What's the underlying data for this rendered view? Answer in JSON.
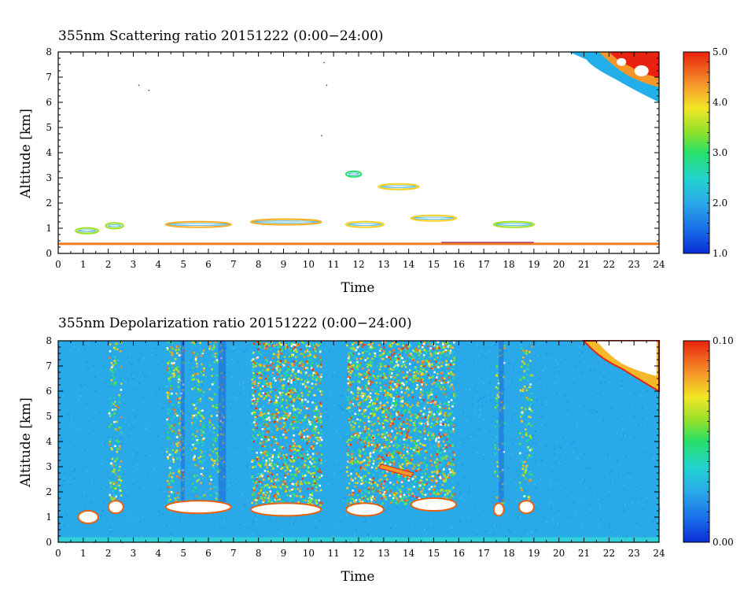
{
  "chart_data": [
    {
      "type": "heatmap",
      "title": "355nm Scattering ratio  20151222 (0:00−24:00)",
      "xlabel": "Time",
      "ylabel": "Altitude [km]",
      "xlim": [
        0,
        24
      ],
      "ylim": [
        0,
        8
      ],
      "x_ticks": [
        "0",
        "1",
        "2",
        "3",
        "4",
        "5",
        "6",
        "7",
        "8",
        "9",
        "10",
        "11",
        "12",
        "13",
        "14",
        "15",
        "16",
        "17",
        "18",
        "19",
        "20",
        "21",
        "22",
        "23",
        "24"
      ],
      "y_ticks": [
        "0",
        "1",
        "2",
        "3",
        "4",
        "5",
        "6",
        "7",
        "8"
      ],
      "colorbar": {
        "min": 1.0,
        "max": 5.0,
        "labels": [
          "1.0",
          "2.0",
          "3.0",
          "4.0",
          "5.0"
        ]
      },
      "background": "white (below scale)",
      "features": [
        {
          "kind": "surface-layer",
          "t0": 0.0,
          "t1": 24.0,
          "alt": 0.38,
          "value": 4.5
        },
        {
          "kind": "cloud",
          "t0": 0.7,
          "t1": 1.6,
          "alt": 0.9,
          "value": 3.5
        },
        {
          "kind": "cloud",
          "t0": 1.9,
          "t1": 2.6,
          "alt": 1.1,
          "value": 3.5
        },
        {
          "kind": "cloud",
          "t0": 4.3,
          "t1": 6.9,
          "alt": 1.15,
          "value": 4.2
        },
        {
          "kind": "cloud",
          "t0": 7.7,
          "t1": 10.5,
          "alt": 1.25,
          "value": 4.2
        },
        {
          "kind": "cloud",
          "t0": 11.5,
          "t1": 13.0,
          "alt": 1.15,
          "value": 4.0
        },
        {
          "kind": "cloud",
          "t0": 14.1,
          "t1": 15.9,
          "alt": 1.4,
          "value": 4.0
        },
        {
          "kind": "cloud",
          "t0": 17.4,
          "t1": 19.0,
          "alt": 1.15,
          "value": 3.5
        },
        {
          "kind": "cloud",
          "t0": 11.5,
          "t1": 12.1,
          "alt": 3.15,
          "value": 3.0
        },
        {
          "kind": "cloud",
          "t0": 12.8,
          "t1": 14.4,
          "alt": 2.65,
          "value": 4.0
        },
        {
          "kind": "cirrus",
          "t0": 20.4,
          "t1": 24.0,
          "alt_top": 8.0,
          "alt_bottom": 6.0,
          "value": 5.0
        }
      ]
    },
    {
      "type": "heatmap",
      "title": "355nm Depolarization ratio  20151222 (0:00−24:00)",
      "xlabel": "Time",
      "ylabel": "Altitude [km]",
      "xlim": [
        0,
        24
      ],
      "ylim": [
        0,
        8
      ],
      "x_ticks": [
        "0",
        "1",
        "2",
        "3",
        "4",
        "5",
        "6",
        "7",
        "8",
        "9",
        "10",
        "11",
        "12",
        "13",
        "14",
        "15",
        "16",
        "17",
        "18",
        "19",
        "20",
        "21",
        "22",
        "23",
        "24"
      ],
      "y_ticks": [
        "0",
        "1",
        "2",
        "3",
        "4",
        "5",
        "6",
        "7",
        "8"
      ],
      "colorbar": {
        "min": 0.0,
        "max": 0.1,
        "labels": [
          "0.00",
          "0.10"
        ]
      },
      "background_value": 0.025,
      "high_columns": [
        {
          "t0": 2.0,
          "t1": 2.5,
          "intensity": 0.6
        },
        {
          "t0": 4.3,
          "t1": 5.0,
          "intensity": 0.7
        },
        {
          "t0": 5.3,
          "t1": 5.8,
          "intensity": 0.6
        },
        {
          "t0": 6.0,
          "t1": 6.6,
          "intensity": 0.5
        },
        {
          "t0": 7.7,
          "t1": 10.5,
          "intensity": 0.95
        },
        {
          "t0": 11.5,
          "t1": 15.8,
          "intensity": 0.95
        },
        {
          "t0": 17.4,
          "t1": 17.8,
          "intensity": 0.4
        },
        {
          "t0": 18.4,
          "t1": 18.9,
          "intensity": 0.5
        }
      ],
      "cloud_bases": [
        {
          "t0": 0.8,
          "t1": 1.6,
          "alt": 1.0
        },
        {
          "t0": 2.0,
          "t1": 2.6,
          "alt": 1.4
        },
        {
          "t0": 4.3,
          "t1": 6.9,
          "alt": 1.4
        },
        {
          "t0": 7.7,
          "t1": 10.5,
          "alt": 1.3
        },
        {
          "t0": 11.5,
          "t1": 13.0,
          "alt": 1.3
        },
        {
          "t0": 14.1,
          "t1": 15.9,
          "alt": 1.5
        },
        {
          "t0": 17.4,
          "t1": 17.8,
          "alt": 1.3
        },
        {
          "t0": 18.4,
          "t1": 19.0,
          "alt": 1.4
        }
      ],
      "cirrus": {
        "t0": 20.4,
        "t1": 24.0,
        "alt_top": 8.0,
        "alt_bottom": 6.0
      }
    }
  ]
}
